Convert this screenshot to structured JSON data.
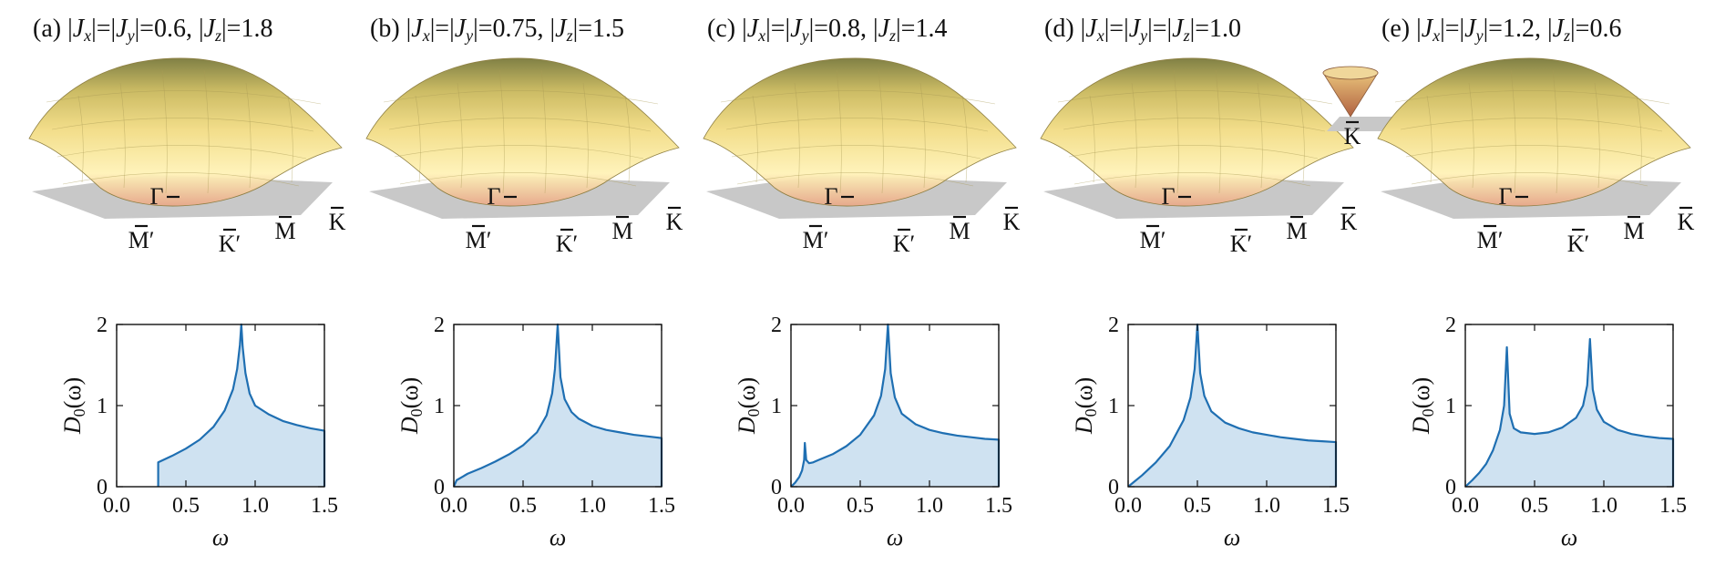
{
  "panels": [
    {
      "title": {
        "pre": "(a) |",
        "j1": "J",
        "s1": "x",
        "m1": "|=|",
        "j2": "J",
        "s2": "y",
        "m2": "|=0.6, |",
        "j3": "J",
        "s3": "z",
        "post": "|=1.8"
      },
      "bz_labels": [
        "Γ",
        "M′",
        "K′",
        "M",
        "K"
      ],
      "inset_label": ""
    },
    {
      "title": {
        "pre": "(b) |",
        "j1": "J",
        "s1": "x",
        "m1": "|=|",
        "j2": "J",
        "s2": "y",
        "m2": "|=0.75, |",
        "j3": "J",
        "s3": "z",
        "post": "|=1.5"
      },
      "bz_labels": [
        "Γ",
        "M′",
        "K′",
        "M",
        "K"
      ],
      "inset_label": ""
    },
    {
      "title": {
        "pre": "(c) |",
        "j1": "J",
        "s1": "x",
        "m1": "|=|",
        "j2": "J",
        "s2": "y",
        "m2": "|=0.8, |",
        "j3": "J",
        "s3": "z",
        "post": "|=1.4"
      },
      "bz_labels": [
        "Γ",
        "M′",
        "K′",
        "M",
        "K"
      ],
      "inset_label": ""
    },
    {
      "title": {
        "pre": "(d) |",
        "j1": "J",
        "s1": "x",
        "m1": "|=|",
        "j2": "J",
        "s2": "y",
        "m2": "|=|",
        "j3": "J",
        "s3": "z",
        "post": "|=1.0"
      },
      "bz_labels": [
        "Γ",
        "M′",
        "K′",
        "M",
        "K"
      ],
      "inset_label": "K"
    },
    {
      "title": {
        "pre": "(e) |",
        "j1": "J",
        "s1": "x",
        "m1": "|=|",
        "j2": "J",
        "s2": "y",
        "m2": "|=1.2, |",
        "j3": "J",
        "s3": "z",
        "post": "|=0.6"
      },
      "bz_labels": [
        "Γ",
        "M′",
        "K′",
        "M",
        "K"
      ],
      "inset_label": ""
    }
  ],
  "colors": {
    "line": "#1f6fb2",
    "fill": "#cfe2f1",
    "plane": "#c8c8c8",
    "surface_top": "#7f7f3e",
    "surface_mid": "#f2dc84",
    "surface_low": "#fff3b8",
    "surface_bottom": "#d98a6a"
  },
  "chart_data": [
    {
      "type": "area",
      "xlabel": "ω",
      "ylabel_main": "D",
      "ylabel_sub": "0",
      "ylabel_arg": "(ω)",
      "xlim": [
        0,
        1.5
      ],
      "ylim": [
        0,
        2
      ],
      "xticks": [
        "0.0",
        "0.5",
        "1.0",
        "1.5"
      ],
      "yticks": [
        "0",
        "1",
        "2"
      ],
      "series": [
        {
          "x": [
            0.3,
            0.3,
            0.4,
            0.5,
            0.6,
            0.7,
            0.78,
            0.84,
            0.87,
            0.89,
            0.9,
            0.91,
            0.93,
            0.96,
            1.0,
            1.1,
            1.2,
            1.3,
            1.4,
            1.5,
            1.5
          ],
          "y": [
            0,
            0.3,
            0.38,
            0.47,
            0.58,
            0.74,
            0.94,
            1.2,
            1.45,
            1.75,
            2.0,
            1.72,
            1.4,
            1.15,
            1.0,
            0.89,
            0.81,
            0.76,
            0.72,
            0.69,
            0
          ]
        }
      ]
    },
    {
      "type": "area",
      "xlabel": "ω",
      "ylabel_main": "D",
      "ylabel_sub": "0",
      "ylabel_arg": "(ω)",
      "xlim": [
        0,
        1.5
      ],
      "ylim": [
        0,
        2
      ],
      "xticks": [
        "0.0",
        "0.5",
        "1.0",
        "1.5"
      ],
      "yticks": [
        "0",
        "1",
        "2"
      ],
      "series": [
        {
          "x": [
            0,
            0.02,
            0.1,
            0.2,
            0.3,
            0.4,
            0.5,
            0.6,
            0.67,
            0.71,
            0.73,
            0.75,
            0.77,
            0.8,
            0.85,
            0.9,
            1.0,
            1.1,
            1.2,
            1.3,
            1.4,
            1.5,
            1.5
          ],
          "y": [
            0,
            0.08,
            0.16,
            0.23,
            0.31,
            0.4,
            0.51,
            0.67,
            0.88,
            1.15,
            1.45,
            2.0,
            1.35,
            1.08,
            0.92,
            0.84,
            0.75,
            0.7,
            0.67,
            0.64,
            0.62,
            0.6,
            0
          ]
        }
      ]
    },
    {
      "type": "area",
      "xlabel": "ω",
      "ylabel_main": "D",
      "ylabel_sub": "0",
      "ylabel_arg": "(ω)",
      "xlim": [
        0,
        1.5
      ],
      "ylim": [
        0,
        2
      ],
      "xticks": [
        "0.0",
        "0.5",
        "1.0",
        "1.5"
      ],
      "yticks": [
        "0",
        "1",
        "2"
      ],
      "series": [
        {
          "x": [
            0,
            0.03,
            0.06,
            0.08,
            0.095,
            0.1,
            0.11,
            0.13,
            0.16,
            0.2,
            0.3,
            0.4,
            0.5,
            0.6,
            0.65,
            0.68,
            0.7,
            0.72,
            0.75,
            0.8,
            0.9,
            1.0,
            1.1,
            1.2,
            1.3,
            1.4,
            1.5,
            1.5
          ],
          "y": [
            0,
            0.05,
            0.12,
            0.2,
            0.33,
            0.54,
            0.33,
            0.29,
            0.3,
            0.33,
            0.4,
            0.5,
            0.64,
            0.88,
            1.12,
            1.45,
            2.0,
            1.4,
            1.1,
            0.9,
            0.77,
            0.7,
            0.66,
            0.63,
            0.61,
            0.59,
            0.58,
            0
          ]
        }
      ]
    },
    {
      "type": "area",
      "xlabel": "ω",
      "ylabel_main": "D",
      "ylabel_sub": "0",
      "ylabel_arg": "(ω)",
      "xlim": [
        0,
        1.5
      ],
      "ylim": [
        0,
        2
      ],
      "xticks": [
        "0.0",
        "0.5",
        "1.0",
        "1.5"
      ],
      "yticks": [
        "0",
        "1",
        "2"
      ],
      "series": [
        {
          "x": [
            0,
            0.05,
            0.1,
            0.2,
            0.3,
            0.4,
            0.45,
            0.48,
            0.5,
            0.52,
            0.55,
            0.6,
            0.7,
            0.8,
            0.9,
            1.0,
            1.1,
            1.2,
            1.3,
            1.4,
            1.5,
            1.5
          ],
          "y": [
            0,
            0.07,
            0.14,
            0.3,
            0.5,
            0.82,
            1.1,
            1.45,
            2.0,
            1.4,
            1.12,
            0.93,
            0.79,
            0.72,
            0.67,
            0.64,
            0.61,
            0.59,
            0.57,
            0.56,
            0.55,
            0
          ]
        }
      ]
    },
    {
      "type": "area",
      "xlabel": "ω",
      "ylabel_main": "D",
      "ylabel_sub": "0",
      "ylabel_arg": "(ω)",
      "xlim": [
        0,
        1.5
      ],
      "ylim": [
        0,
        2
      ],
      "xticks": [
        "0.0",
        "0.5",
        "1.0",
        "1.5"
      ],
      "yticks": [
        "0",
        "1",
        "2"
      ],
      "series": [
        {
          "x": [
            0,
            0.05,
            0.1,
            0.15,
            0.2,
            0.25,
            0.28,
            0.3,
            0.32,
            0.35,
            0.4,
            0.5,
            0.6,
            0.7,
            0.8,
            0.85,
            0.88,
            0.9,
            0.92,
            0.95,
            1.0,
            1.1,
            1.2,
            1.3,
            1.4,
            1.5,
            1.5
          ],
          "y": [
            0,
            0.08,
            0.17,
            0.28,
            0.45,
            0.7,
            1.0,
            1.72,
            0.9,
            0.72,
            0.67,
            0.65,
            0.67,
            0.73,
            0.85,
            1.0,
            1.25,
            1.82,
            1.2,
            0.95,
            0.8,
            0.7,
            0.65,
            0.62,
            0.6,
            0.59,
            0
          ]
        }
      ]
    }
  ]
}
